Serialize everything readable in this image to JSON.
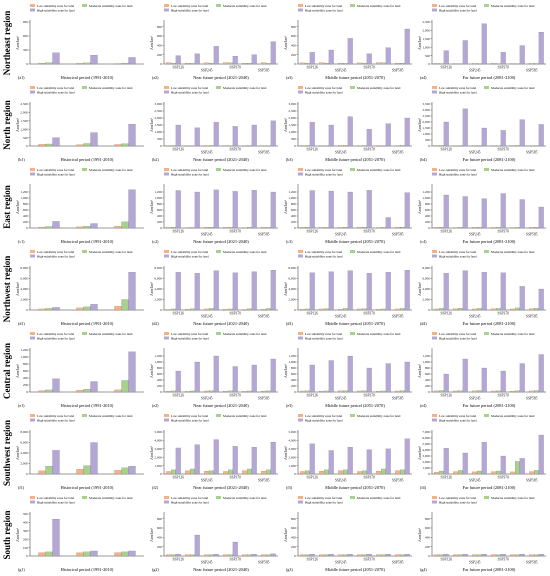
{
  "regions": [
    "Northeast region",
    "North region",
    "East region",
    "Northwest region",
    "Central region",
    "Southwest region",
    "South region"
  ],
  "legend": {
    "low": "Low suitability zone for land",
    "moderate": "Moderate suitability zone for land",
    "high": "High suitability zone for land"
  },
  "colors": {
    "low": "#f4b183",
    "moderate": "#a9d18e",
    "high": "#b4a7d6",
    "axis": "#333333"
  },
  "ylabel": "Area/km²",
  "period_titles": [
    "Historical period (1991-2010)",
    "Near future period (2021-2040)",
    "Middle future period (2051-2070)",
    "Far future period (2081-2100)"
  ],
  "scenario_labels": [
    "SSP126",
    "SSP245",
    "SSP370",
    "SSP585"
  ],
  "chart_data": [
    {
      "region": "Northeast region",
      "col": 0,
      "label": "(a1)",
      "type": "bar",
      "ylim": [
        0,
        900
      ],
      "ticks": [
        0,
        300,
        600,
        900
      ],
      "groups": [
        [
          20,
          30,
          240
        ],
        [
          15,
          25,
          190
        ],
        [
          10,
          20,
          140
        ]
      ]
    },
    {
      "region": "Northeast region",
      "col": 1,
      "label": "(a2)",
      "type": "bar",
      "ylim": [
        0,
        900
      ],
      "ticks": [
        0,
        200,
        400,
        600,
        800
      ],
      "groups": [
        [
          30,
          20,
          180
        ],
        [
          20,
          15,
          220
        ],
        [
          25,
          20,
          380
        ],
        [
          30,
          25,
          170
        ],
        [
          20,
          20,
          200
        ],
        [
          30,
          15,
          480
        ]
      ]
    },
    {
      "region": "Northeast region",
      "col": 2,
      "label": "(a3)",
      "type": "bar",
      "ylim": [
        0,
        900
      ],
      "ticks": [
        0,
        200,
        400,
        600,
        800
      ],
      "groups": [
        [
          25,
          20,
          250
        ],
        [
          30,
          20,
          300
        ],
        [
          20,
          15,
          550
        ],
        [
          25,
          20,
          220
        ],
        [
          30,
          25,
          350
        ],
        [
          20,
          20,
          750
        ]
      ]
    },
    {
      "region": "Northeast region",
      "col": 3,
      "label": "(a4)",
      "type": "bar",
      "ylim": [
        0,
        2500
      ],
      "ticks": [
        0,
        500,
        1000,
        1500,
        2000,
        2500
      ],
      "groups": [
        [
          40,
          30,
          800
        ],
        [
          30,
          25,
          1400
        ],
        [
          35,
          30,
          2400
        ],
        [
          40,
          25,
          700
        ],
        [
          30,
          20,
          1100
        ],
        [
          40,
          35,
          1900
        ]
      ]
    },
    {
      "region": "North region",
      "col": 0,
      "label": "(b1)",
      "type": "bar",
      "ylim": [
        0,
        2500
      ],
      "ticks": [
        0,
        500,
        1000,
        1500,
        2000,
        2500
      ],
      "groups": [
        [
          100,
          120,
          500
        ],
        [
          80,
          150,
          800
        ],
        [
          90,
          140,
          1300
        ]
      ]
    },
    {
      "region": "North region",
      "col": 1,
      "label": "(b2)",
      "type": "bar",
      "ylim": [
        0,
        3000
      ],
      "ticks": [
        0,
        500,
        1000,
        1500,
        2000,
        2500,
        3000
      ],
      "groups": [
        [
          30,
          40,
          1500
        ],
        [
          25,
          30,
          1300
        ],
        [
          35,
          40,
          1700
        ],
        [
          30,
          35,
          1400
        ],
        [
          25,
          40,
          1500
        ],
        [
          30,
          35,
          1800
        ]
      ]
    },
    {
      "region": "North region",
      "col": 2,
      "label": "(b3)",
      "type": "bar",
      "ylim": [
        0,
        3000
      ],
      "ticks": [
        0,
        500,
        1000,
        1500,
        2000,
        2500,
        3000
      ],
      "groups": [
        [
          35,
          40,
          1700
        ],
        [
          30,
          35,
          1500
        ],
        [
          40,
          45,
          2100
        ],
        [
          30,
          40,
          1200
        ],
        [
          35,
          30,
          1600
        ],
        [
          30,
          45,
          2000
        ]
      ]
    },
    {
      "region": "North region",
      "col": 3,
      "label": "(b4)",
      "type": "bar",
      "ylim": [
        0,
        3500
      ],
      "ticks": [
        0,
        500,
        1000,
        1500,
        2000,
        2500,
        3000,
        3500
      ],
      "groups": [
        [
          40,
          50,
          2000
        ],
        [
          35,
          40,
          3100
        ],
        [
          40,
          45,
          1500
        ],
        [
          30,
          40,
          1300
        ],
        [
          35,
          50,
          2200
        ],
        [
          30,
          40,
          1800
        ]
      ]
    },
    {
      "region": "East region",
      "col": 0,
      "label": "(c1)",
      "type": "bar",
      "ylim": [
        0,
        1400
      ],
      "ticks": [
        0,
        200,
        400,
        600,
        800,
        1000,
        1200
      ],
      "groups": [
        [
          30,
          50,
          220
        ],
        [
          40,
          60,
          150
        ],
        [
          60,
          210,
          1280
        ]
      ]
    },
    {
      "region": "East region",
      "col": 1,
      "label": "(c2)",
      "type": "bar",
      "ylim": [
        0,
        1400
      ],
      "ticks": [
        0,
        200,
        400,
        600,
        800,
        1000,
        1200
      ],
      "groups": [
        [
          20,
          30,
          1250
        ],
        [
          15,
          20,
          1200
        ],
        [
          25,
          30,
          1270
        ],
        [
          20,
          25,
          1220
        ],
        [
          15,
          30,
          1260
        ],
        [
          25,
          20,
          1200
        ]
      ]
    },
    {
      "region": "East region",
      "col": 2,
      "label": "(c3)",
      "type": "bar",
      "ylim": [
        0,
        1400
      ],
      "ticks": [
        0,
        200,
        400,
        600,
        800,
        1000,
        1200
      ],
      "groups": [
        [
          25,
          30,
          1250
        ],
        [
          20,
          25,
          1230
        ],
        [
          20,
          30,
          1200
        ],
        [
          25,
          30,
          1260
        ],
        [
          15,
          25,
          350
        ],
        [
          25,
          30,
          1180
        ]
      ]
    },
    {
      "region": "East region",
      "col": 3,
      "label": "(c4)",
      "type": "bar",
      "ylim": [
        0,
        1400
      ],
      "ticks": [
        0,
        200,
        400,
        600,
        800,
        1000,
        1200
      ],
      "groups": [
        [
          20,
          30,
          1100
        ],
        [
          15,
          25,
          1050
        ],
        [
          25,
          30,
          980
        ],
        [
          20,
          25,
          1150
        ],
        [
          15,
          20,
          950
        ],
        [
          20,
          30,
          700
        ]
      ]
    },
    {
      "region": "Northwest region",
      "col": 0,
      "label": "(d1)",
      "type": "bar",
      "ylim": [
        0,
        8000
      ],
      "ticks": [
        0,
        2000,
        4000,
        6000,
        8000
      ],
      "groups": [
        [
          200,
          300,
          500
        ],
        [
          400,
          600,
          1100
        ],
        [
          700,
          2000,
          7200
        ]
      ]
    },
    {
      "region": "Northwest region",
      "col": 1,
      "label": "(d2)",
      "type": "bar",
      "ylim": [
        0,
        8000
      ],
      "ticks": [
        0,
        2000,
        4000,
        6000,
        8000
      ],
      "groups": [
        [
          100,
          200,
          7200
        ],
        [
          150,
          250,
          7000
        ],
        [
          200,
          300,
          7500
        ],
        [
          150,
          200,
          7100
        ],
        [
          100,
          250,
          7300
        ],
        [
          150,
          300,
          7600
        ]
      ]
    },
    {
      "region": "Northwest region",
      "col": 2,
      "label": "(d3)",
      "type": "bar",
      "ylim": [
        0,
        8000
      ],
      "ticks": [
        0,
        2000,
        4000,
        6000,
        8000
      ],
      "groups": [
        [
          150,
          200,
          7100
        ],
        [
          200,
          250,
          7300
        ],
        [
          150,
          300,
          7500
        ],
        [
          200,
          250,
          7000
        ],
        [
          150,
          200,
          7200
        ],
        [
          200,
          300,
          7600
        ]
      ]
    },
    {
      "region": "Northwest region",
      "col": 3,
      "label": "(d4)",
      "type": "bar",
      "ylim": [
        0,
        8000
      ],
      "ticks": [
        0,
        2000,
        4000,
        6000,
        8000
      ],
      "groups": [
        [
          200,
          300,
          7000
        ],
        [
          250,
          350,
          7500
        ],
        [
          200,
          300,
          7200
        ],
        [
          250,
          300,
          7100
        ],
        [
          200,
          400,
          4500
        ],
        [
          250,
          350,
          4000
        ]
      ]
    },
    {
      "region": "Central region",
      "col": 0,
      "label": "(e1)",
      "type": "bar",
      "ylim": [
        0,
        1200
      ],
      "ticks": [
        0,
        200,
        400,
        600,
        800,
        1000,
        1200
      ],
      "groups": [
        [
          40,
          60,
          380
        ],
        [
          50,
          80,
          300
        ],
        [
          60,
          330,
          1150
        ]
      ]
    },
    {
      "region": "Central region",
      "col": 1,
      "label": "(e2)",
      "type": "bar",
      "ylim": [
        0,
        1400
      ],
      "ticks": [
        0,
        200,
        400,
        600,
        800,
        1000,
        1200
      ],
      "groups": [
        [
          30,
          40,
          700
        ],
        [
          25,
          35,
          1000
        ],
        [
          35,
          45,
          1200
        ],
        [
          30,
          40,
          850
        ],
        [
          25,
          35,
          900
        ],
        [
          30,
          40,
          1100
        ]
      ]
    },
    {
      "region": "Central region",
      "col": 2,
      "label": "(e3)",
      "type": "bar",
      "ylim": [
        0,
        1400
      ],
      "ticks": [
        0,
        200,
        400,
        600,
        800,
        1000,
        1200
      ],
      "groups": [
        [
          35,
          40,
          900
        ],
        [
          30,
          35,
          1050
        ],
        [
          40,
          45,
          1200
        ],
        [
          35,
          40,
          800
        ],
        [
          30,
          35,
          950
        ],
        [
          35,
          45,
          1000
        ]
      ]
    },
    {
      "region": "Central region",
      "col": 3,
      "label": "(e4)",
      "type": "bar",
      "ylim": [
        0,
        1400
      ],
      "ticks": [
        0,
        200,
        400,
        600,
        800,
        1000,
        1200
      ],
      "groups": [
        [
          40,
          50,
          600
        ],
        [
          35,
          45,
          1100
        ],
        [
          40,
          50,
          800
        ],
        [
          35,
          40,
          700
        ],
        [
          30,
          45,
          950
        ],
        [
          35,
          50,
          1250
        ]
      ]
    },
    {
      "region": "Southwest region",
      "col": 0,
      "label": "(f1)",
      "type": "bar",
      "ylim": [
        0,
        8000
      ],
      "ticks": [
        0,
        2000,
        4000,
        6000,
        8000
      ],
      "groups": [
        [
          600,
          1500,
          4500
        ],
        [
          900,
          1600,
          6000
        ],
        [
          700,
          1200,
          1500
        ]
      ]
    },
    {
      "region": "Southwest region",
      "col": 1,
      "label": "(f2)",
      "type": "bar",
      "ylim": [
        0,
        5000
      ],
      "ticks": [
        0,
        1000,
        2000,
        3000,
        4000,
        5000
      ],
      "groups": [
        [
          300,
          500,
          3100
        ],
        [
          400,
          600,
          3500
        ],
        [
          350,
          400,
          4100
        ],
        [
          300,
          500,
          3300
        ],
        [
          400,
          600,
          3200
        ],
        [
          350,
          500,
          3800
        ]
      ]
    },
    {
      "region": "Southwest region",
      "col": 2,
      "label": "(f3)",
      "type": "bar",
      "ylim": [
        0,
        5000
      ],
      "ticks": [
        0,
        1000,
        2000,
        3000,
        4000,
        5000
      ],
      "groups": [
        [
          300,
          400,
          3600
        ],
        [
          350,
          500,
          2800
        ],
        [
          400,
          500,
          3200
        ],
        [
          300,
          400,
          2900
        ],
        [
          350,
          600,
          3000
        ],
        [
          400,
          500,
          4200
        ]
      ]
    },
    {
      "region": "Southwest region",
      "col": 3,
      "label": "(f4)",
      "type": "bar",
      "ylim": [
        0,
        7000
      ],
      "ticks": [
        0,
        1000,
        2000,
        3000,
        4000,
        5000,
        6000,
        7000
      ],
      "groups": [
        [
          300,
          500,
          4300
        ],
        [
          400,
          600,
          3500
        ],
        [
          350,
          500,
          5300
        ],
        [
          400,
          500,
          3000
        ],
        [
          350,
          2100,
          2600
        ],
        [
          400,
          600,
          6500
        ]
      ]
    },
    {
      "region": "South region",
      "col": 0,
      "label": "(g1)",
      "type": "bar",
      "ylim": [
        0,
        500
      ],
      "ticks": [
        0,
        100,
        200,
        300,
        400,
        500
      ],
      "groups": [
        [
          40,
          50,
          440
        ],
        [
          40,
          50,
          60
        ],
        [
          40,
          50,
          60
        ]
      ]
    },
    {
      "region": "South region",
      "col": 1,
      "label": "(g2)",
      "type": "bar",
      "ylim": [
        0,
        900
      ],
      "ticks": [
        0,
        200,
        400,
        600,
        800
      ],
      "groups": [
        [
          30,
          30,
          40
        ],
        [
          30,
          30,
          450
        ],
        [
          30,
          30,
          40
        ],
        [
          30,
          30,
          300
        ],
        [
          30,
          30,
          40
        ],
        [
          30,
          30,
          50
        ]
      ]
    },
    {
      "region": "South region",
      "col": 2,
      "label": "(g3)",
      "type": "bar",
      "ylim": [
        0,
        900
      ],
      "ticks": [
        0,
        200,
        400,
        600,
        800
      ],
      "groups": [
        [
          30,
          30,
          40
        ],
        [
          30,
          30,
          40
        ],
        [
          30,
          30,
          40
        ],
        [
          30,
          30,
          40
        ],
        [
          30,
          30,
          40
        ],
        [
          30,
          30,
          40
        ]
      ]
    },
    {
      "region": "South region",
      "col": 3,
      "label": "(g4)",
      "type": "bar",
      "ylim": [
        0,
        900
      ],
      "ticks": [
        0,
        200,
        400,
        600,
        800
      ],
      "groups": [
        [
          30,
          30,
          40
        ],
        [
          30,
          30,
          40
        ],
        [
          30,
          30,
          40
        ],
        [
          30,
          30,
          40
        ],
        [
          30,
          30,
          40
        ],
        [
          30,
          30,
          40
        ]
      ]
    }
  ]
}
